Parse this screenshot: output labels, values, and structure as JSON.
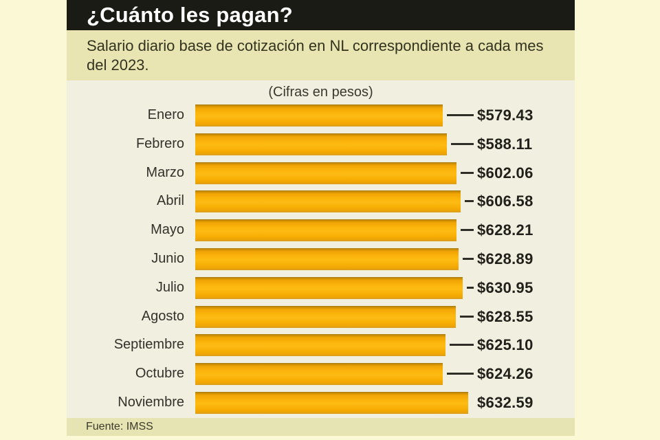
{
  "header": {
    "title": "¿Cuánto les pagan?",
    "bg_color": "#1b1b15",
    "text_color": "#ffffff"
  },
  "subtitle": {
    "text": "Salario diario base de cotización en NL correspondiente a cada mes del 2023.",
    "bg_color": "#e8e5b2"
  },
  "chart_data": {
    "type": "bar",
    "orientation": "horizontal",
    "title": "¿Cuánto les pagan?",
    "subtitle": "Salario diario base de cotización en NL correspondiente a cada mes del 2023.",
    "units_note": "(Cifras en pesos)",
    "categories": [
      "Enero",
      "Febrero",
      "Marzo",
      "Abril",
      "Mayo",
      "Junio",
      "Julio",
      "Agosto",
      "Septiembre",
      "Octubre",
      "Noviembre"
    ],
    "values": [
      579.43,
      588.11,
      602.06,
      606.58,
      628.21,
      628.89,
      630.95,
      628.55,
      625.1,
      624.26,
      632.59
    ],
    "value_labels": [
      "$579.43",
      "$588.11",
      "$602.06",
      "$606.58",
      "$628.21",
      "$628.89",
      "$630.95",
      "$628.55",
      "$625.10",
      "$624.26",
      "$632.59"
    ],
    "bar_color": "#f9b107",
    "background_color": "#f1efe0",
    "connector_lines": true,
    "legend": "none",
    "grid": false,
    "bar_pixel_widths": [
      360,
      366,
      380,
      386,
      380,
      383,
      389,
      379,
      364,
      360,
      397
    ]
  },
  "footer": {
    "source_label": "Fuente: IMSS",
    "bg_color": "#e7e4b3"
  }
}
